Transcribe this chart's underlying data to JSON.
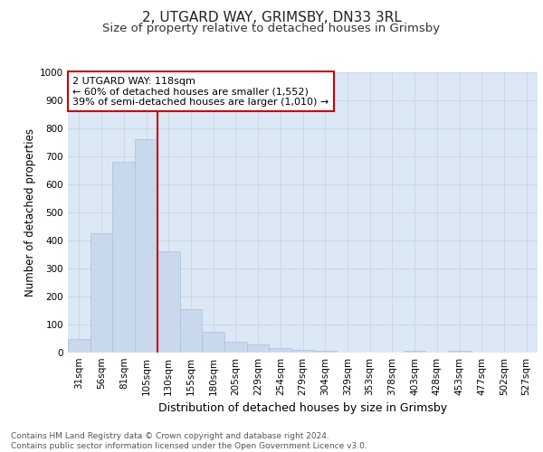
{
  "title1": "2, UTGARD WAY, GRIMSBY, DN33 3RL",
  "title2": "Size of property relative to detached houses in Grimsby",
  "xlabel": "Distribution of detached houses by size in Grimsby",
  "ylabel": "Number of detached properties",
  "bar_labels": [
    "31sqm",
    "56sqm",
    "81sqm",
    "105sqm",
    "130sqm",
    "155sqm",
    "180sqm",
    "205sqm",
    "229sqm",
    "254sqm",
    "279sqm",
    "304sqm",
    "329sqm",
    "353sqm",
    "378sqm",
    "403sqm",
    "428sqm",
    "453sqm",
    "477sqm",
    "502sqm",
    "527sqm"
  ],
  "bar_values": [
    50,
    425,
    680,
    760,
    360,
    155,
    75,
    40,
    30,
    15,
    10,
    5,
    0,
    0,
    0,
    8,
    0,
    8,
    0,
    0,
    0
  ],
  "bar_color": "#c8d9ee",
  "bar_edge_color": "#aabfd8",
  "red_line_color": "#cc0000",
  "annotation_text": "2 UTGARD WAY: 118sqm\n← 60% of detached houses are smaller (1,552)\n39% of semi-detached houses are larger (1,010) →",
  "annotation_box_color": "#ffffff",
  "annotation_box_edge": "#cc0000",
  "ylim": [
    0,
    1000
  ],
  "yticks": [
    0,
    100,
    200,
    300,
    400,
    500,
    600,
    700,
    800,
    900,
    1000
  ],
  "grid_color": "#c8d8e8",
  "chart_bg_color": "#dce8f5",
  "fig_bg_color": "#ffffff",
  "footer_text": "Contains HM Land Registry data © Crown copyright and database right 2024.\nContains public sector information licensed under the Open Government Licence v3.0.",
  "title1_fontsize": 11,
  "title2_fontsize": 9.5,
  "xlabel_fontsize": 9,
  "ylabel_fontsize": 8.5,
  "tick_fontsize": 7.5,
  "annotation_fontsize": 8,
  "footer_fontsize": 6.5
}
